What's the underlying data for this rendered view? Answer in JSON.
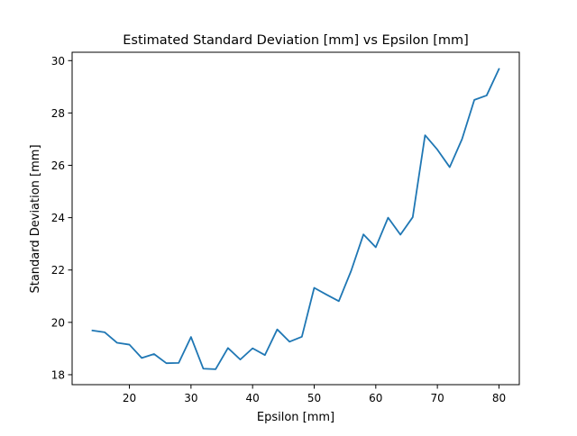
{
  "chart_data": {
    "type": "line",
    "title": "Estimated Standard Deviation [mm] vs Epsilon [mm]",
    "xlabel": "Epsilon [mm]",
    "ylabel": "Standard Deviation [mm]",
    "xlim": [
      10.7,
      83.3
    ],
    "ylim": [
      17.62,
      30.32
    ],
    "xticks": [
      20,
      30,
      40,
      50,
      60,
      70,
      80
    ],
    "yticks": [
      18,
      20,
      22,
      24,
      26,
      28,
      30
    ],
    "grid": false,
    "legend": "none",
    "series": [
      {
        "color": "#1f77b4",
        "x": [
          14,
          16,
          18,
          20,
          22,
          24,
          26,
          28,
          30,
          32,
          34,
          36,
          38,
          40,
          42,
          44,
          46,
          48,
          50,
          52,
          54,
          56,
          58,
          60,
          62,
          64,
          66,
          68,
          70,
          72,
          74,
          76,
          78,
          80
        ],
        "y": [
          19.69,
          19.62,
          19.22,
          19.15,
          18.64,
          18.79,
          18.44,
          18.45,
          19.44,
          18.23,
          18.21,
          19.02,
          18.58,
          19.01,
          18.75,
          19.73,
          19.26,
          19.45,
          21.32,
          21.06,
          20.81,
          21.97,
          23.36,
          22.87,
          24.0,
          23.35,
          24.02,
          27.15,
          26.6,
          25.93,
          27.0,
          28.5,
          28.67,
          29.68
        ]
      }
    ]
  }
}
